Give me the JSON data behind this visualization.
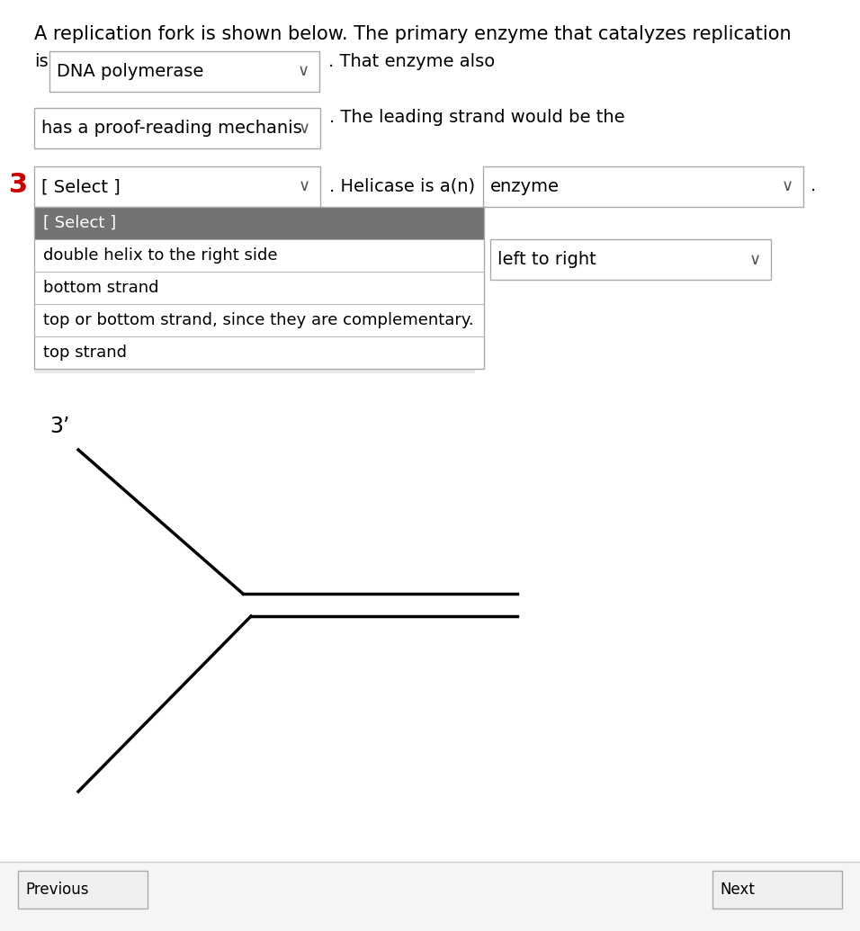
{
  "bg_color": "#ffffff",
  "border_color": "#aaaaaa",
  "text_color": "#000000",
  "red_color": "#cc0000",
  "dropdown_gray_bg": "#737373",
  "dropdown_text_selected": "#ffffff",
  "line1_text": "A replication fork is shown below. The primary enzyme that catalyzes replication",
  "line2_prefix": "is",
  "dropdown1_text": "DNA polymerase",
  "line2_suffix": ". That enzyme also",
  "dropdown2_text": "has a proof-reading mechanis",
  "line3_suffix": ". The leading strand would be the",
  "number3_label": "3",
  "dropdown3_text": "[ Select ]",
  "line4_mid": ". Helicase is a(n)",
  "dropdown4_text": "enzyme",
  "line4_end": ".",
  "dropdown_open_items": [
    "[ Select ]",
    "double helix to the right side",
    "bottom strand",
    "top or bottom strand, since they are complementary.",
    "top strand"
  ],
  "dropdown5_text": "left to right",
  "label_3prime": "3’",
  "title_fontsize": 15,
  "body_fontsize": 14,
  "small_fontsize": 13
}
